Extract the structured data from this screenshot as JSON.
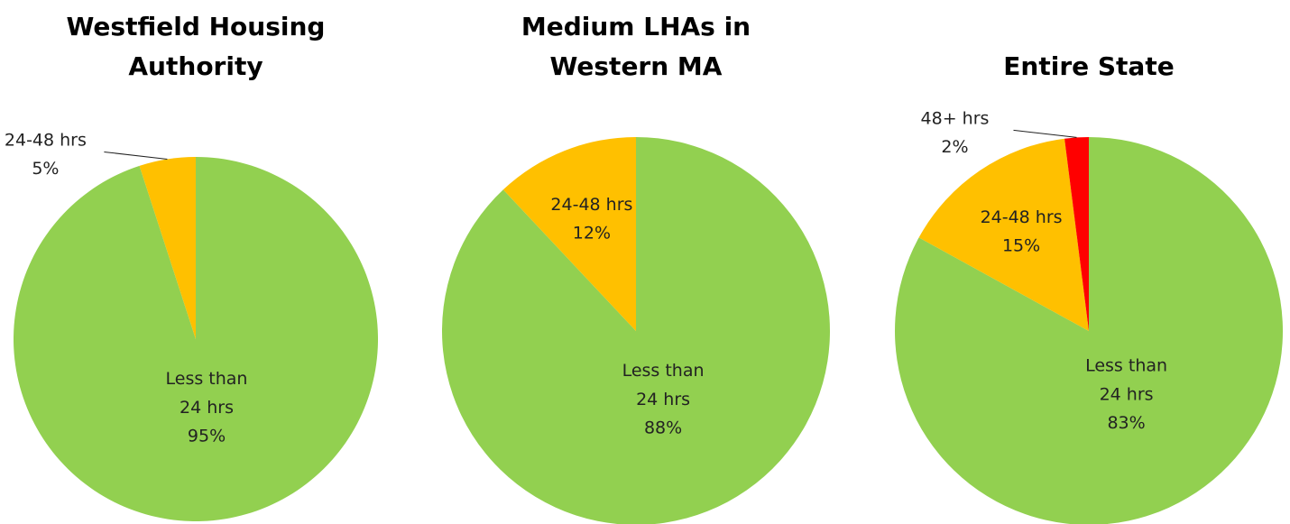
{
  "chart_data": [
    {
      "type": "pie",
      "title": "Westfield Housing Authority",
      "categories": [
        "Less than 24 hrs",
        "24-48 hrs"
      ],
      "values": [
        95,
        5
      ],
      "value_labels": [
        "95%",
        "5%"
      ],
      "colors": [
        "#92d050",
        "#ffc000"
      ]
    },
    {
      "type": "pie",
      "title": "Medium LHAs in Western MA",
      "categories": [
        "Less than 24 hrs",
        "24-48 hrs"
      ],
      "values": [
        88,
        12
      ],
      "value_labels": [
        "88%",
        "12%"
      ],
      "colors": [
        "#92d050",
        "#ffc000"
      ]
    },
    {
      "type": "pie",
      "title": "Entire State",
      "categories": [
        "Less than 24 hrs",
        "24-48 hrs",
        "48+ hrs"
      ],
      "values": [
        83,
        15,
        2
      ],
      "value_labels": [
        "83%",
        "15%",
        "2%"
      ],
      "colors": [
        "#92d050",
        "#ffc000",
        "#ff0000"
      ]
    }
  ]
}
